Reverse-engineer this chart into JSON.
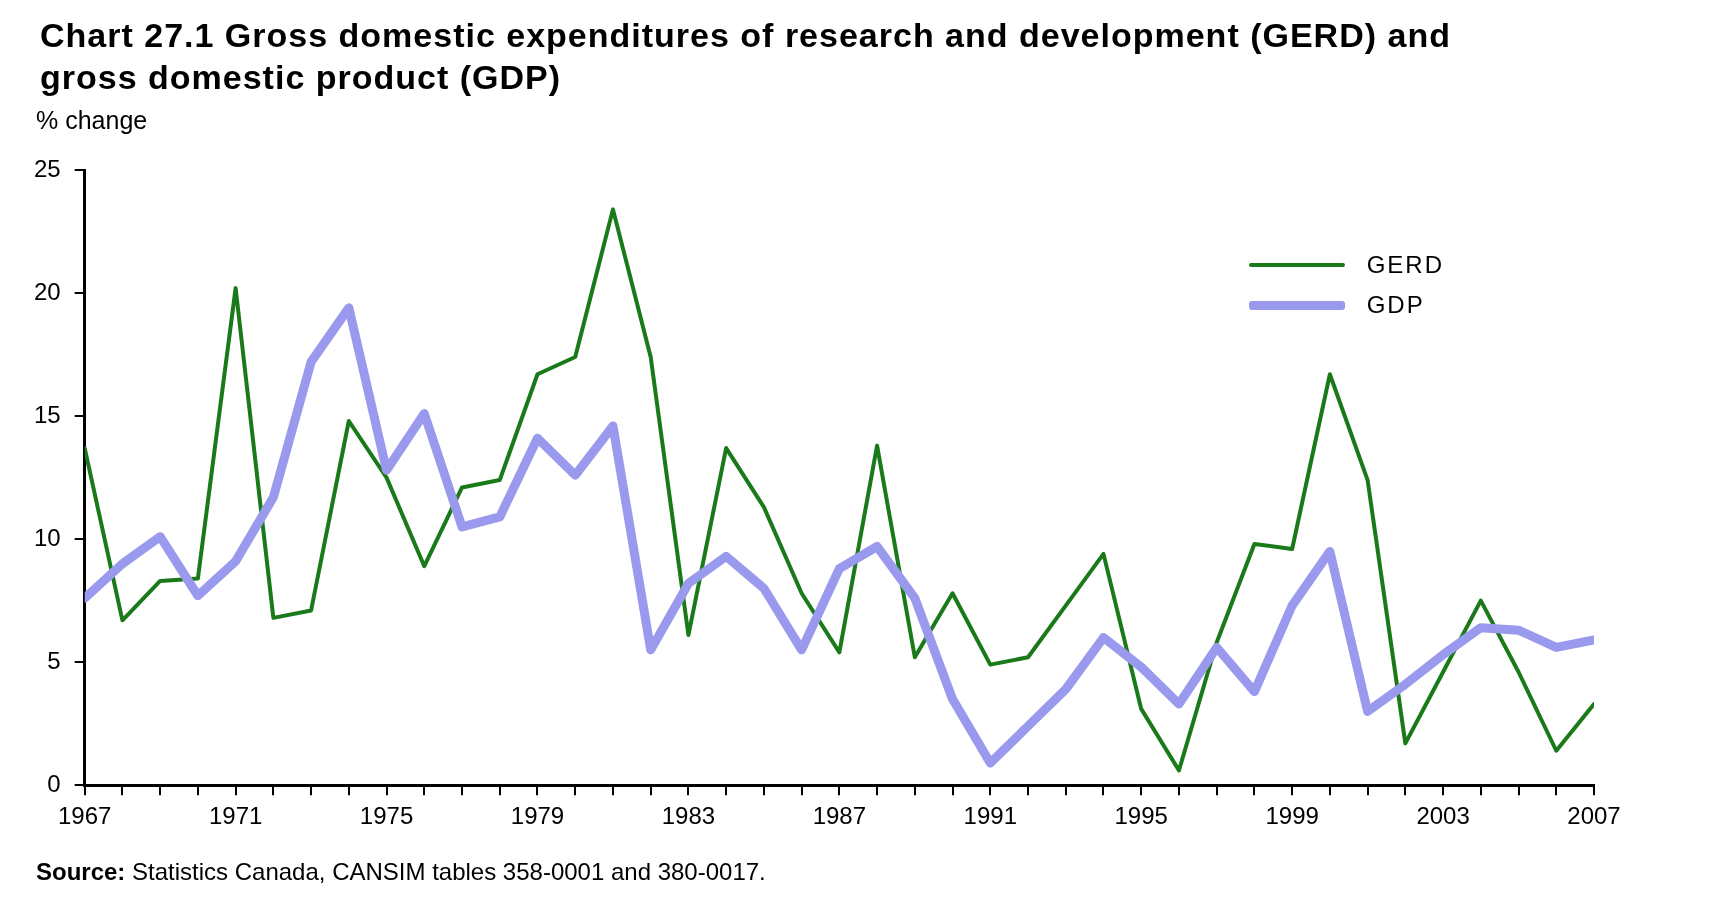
{
  "chart_data": {
    "type": "line",
    "title": "Chart 27.1  Gross domestic expenditures of research and development (GERD) and gross domestic product (GDP)",
    "ylabel": "% change",
    "annotations": [
      "Source: Statistics Canada, CANSIM tables 358-0001 and 380-0017."
    ],
    "x": [
      1967,
      1968,
      1969,
      1970,
      1971,
      1972,
      1973,
      1974,
      1975,
      1976,
      1977,
      1978,
      1979,
      1980,
      1981,
      1982,
      1983,
      1984,
      1985,
      1986,
      1987,
      1988,
      1989,
      1990,
      1991,
      1992,
      1993,
      1994,
      1995,
      1996,
      1997,
      1998,
      1999,
      2000,
      2001,
      2002,
      2003,
      2004,
      2005,
      2006,
      2007
    ],
    "series": [
      {
        "name": "GERD",
        "color": "#1a7a1a",
        "values": [
          13.7,
          6.7,
          8.3,
          8.4,
          20.2,
          6.8,
          7.1,
          14.8,
          12.5,
          8.9,
          12.1,
          12.4,
          16.7,
          17.4,
          23.4,
          17.4,
          6.1,
          13.7,
          11.3,
          7.8,
          5.4,
          13.8,
          5.2,
          7.8,
          4.9,
          5.2,
          7.3,
          9.4,
          3.1,
          0.6,
          5.8,
          9.8,
          9.6,
          16.7,
          12.4,
          1.7,
          4.6,
          7.5,
          4.6,
          1.4,
          3.3
        ]
      },
      {
        "name": "GDP",
        "color": "#9999ee",
        "values": [
          7.6,
          9.0,
          10.1,
          7.7,
          9.1,
          11.7,
          17.2,
          19.4,
          12.8,
          15.1,
          10.5,
          10.9,
          14.1,
          12.6,
          14.6,
          5.5,
          8.2,
          9.3,
          8.0,
          5.5,
          8.8,
          9.7,
          7.6,
          3.5,
          0.9,
          2.4,
          3.9,
          6.0,
          4.8,
          3.3,
          5.6,
          3.8,
          7.3,
          9.5,
          3.0,
          4.1,
          5.3,
          6.4,
          6.3,
          5.6,
          5.9
        ]
      }
    ],
    "xlim": [
      1967,
      2007
    ],
    "xticks": [
      1967,
      {
        "value": 1968,
        "label": null
      },
      {
        "value": 1969,
        "label": null
      },
      {
        "value": 1970,
        "label": null
      },
      1971,
      {
        "value": 1972,
        "label": null
      },
      {
        "value": 1973,
        "label": null
      },
      {
        "value": 1974,
        "label": null
      },
      1975,
      {
        "value": 1976,
        "label": null
      },
      {
        "value": 1977,
        "label": null
      },
      {
        "value": 1978,
        "label": null
      },
      1979,
      {
        "value": 1980,
        "label": null
      },
      {
        "value": 1981,
        "label": null
      },
      {
        "value": 1982,
        "label": null
      },
      1983,
      {
        "value": 1984,
        "label": null
      },
      {
        "value": 1985,
        "label": null
      },
      {
        "value": 1986,
        "label": null
      },
      1987,
      {
        "value": 1988,
        "label": null
      },
      {
        "value": 1989,
        "label": null
      },
      {
        "value": 1990,
        "label": null
      },
      1991,
      {
        "value": 1992,
        "label": null
      },
      {
        "value": 1993,
        "label": null
      },
      {
        "value": 1994,
        "label": null
      },
      1995,
      {
        "value": 1996,
        "label": null
      },
      {
        "value": 1997,
        "label": null
      },
      {
        "value": 1998,
        "label": null
      },
      1999,
      {
        "value": 2000,
        "label": null
      },
      {
        "value": 2001,
        "label": null
      },
      {
        "value": 2002,
        "label": null
      },
      2003,
      {
        "value": 2004,
        "label": null
      },
      {
        "value": 2005,
        "label": null
      },
      {
        "value": 2006,
        "label": null
      },
      2007
    ],
    "ylim": [
      0,
      25
    ],
    "yticks": [
      0,
      5,
      10,
      15,
      20,
      25
    ],
    "grid": false,
    "legend": "top right",
    "marker": "none",
    "line_style": "solid"
  }
}
